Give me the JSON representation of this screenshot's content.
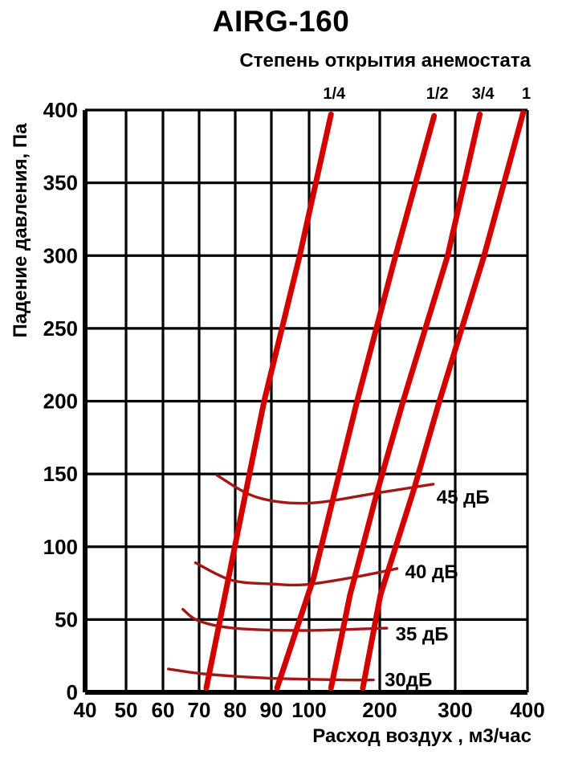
{
  "chart_data": {
    "type": "line",
    "title": "AIRG-160",
    "subtitle": "Степень открытия анемостата",
    "xlabel": "Расход воздух , м3/час",
    "ylabel": "Падение давления, Па",
    "x_scale": "segmented-log",
    "grid": true,
    "xlim": [
      40,
      400
    ],
    "ylim": [
      0,
      400
    ],
    "x_ticks": [
      40,
      50,
      60,
      70,
      80,
      90,
      100,
      200,
      300,
      400
    ],
    "y_ticks": [
      0,
      50,
      100,
      150,
      200,
      250,
      300,
      350,
      400
    ],
    "x_unit": "м3/час",
    "y_unit": "Па",
    "colors": {
      "opening_lines": "#d40000",
      "noise_curves": "#a31717",
      "grid": "#000000",
      "text": "#000000",
      "background": "#ffffff"
    },
    "opening_series": [
      {
        "name": "1/4",
        "points": [
          [
            72,
            3
          ],
          [
            88,
            200
          ],
          [
            97.5,
            300
          ],
          [
            131,
            397
          ]
        ]
      },
      {
        "name": "1/2",
        "points": [
          [
            91.5,
            3
          ],
          [
            106,
            78
          ],
          [
            168,
            200
          ],
          [
            221,
            300
          ],
          [
            272,
            396
          ]
        ]
      },
      {
        "name": "3/4",
        "points": [
          [
            131,
            3
          ],
          [
            158,
            67
          ],
          [
            197,
            139
          ],
          [
            231,
            200
          ],
          [
            290,
            300
          ],
          [
            334,
            397
          ]
        ]
      },
      {
        "name": "1",
        "points": [
          [
            176,
            3
          ],
          [
            201,
            67
          ],
          [
            245,
            139
          ],
          [
            279,
            200
          ],
          [
            340,
            300
          ],
          [
            394,
            398
          ]
        ]
      }
    ],
    "noise_series": [
      {
        "name": "45 дБ",
        "points": [
          [
            75,
            149
          ],
          [
            86,
            134
          ],
          [
            100,
            130
          ],
          [
            197,
            137
          ],
          [
            271,
            143
          ]
        ]
      },
      {
        "name": "40 дБ",
        "points": [
          [
            69,
            89
          ],
          [
            79,
            77
          ],
          [
            90,
            74.5
          ],
          [
            99,
            74
          ],
          [
            163,
            79
          ],
          [
            223,
            85
          ]
        ]
      },
      {
        "name": "35 дБ",
        "points": [
          [
            65.5,
            57
          ],
          [
            70,
            49
          ],
          [
            80,
            44
          ],
          [
            99,
            42.5
          ],
          [
            200,
            44
          ],
          [
            206,
            44
          ]
        ]
      },
      {
        "name": "30дБ",
        "points": [
          [
            61.5,
            16
          ],
          [
            70,
            13
          ],
          [
            80,
            11
          ],
          [
            91.5,
            9.5
          ],
          [
            150,
            8.5
          ],
          [
            191,
            8.5
          ]
        ]
      }
    ]
  }
}
